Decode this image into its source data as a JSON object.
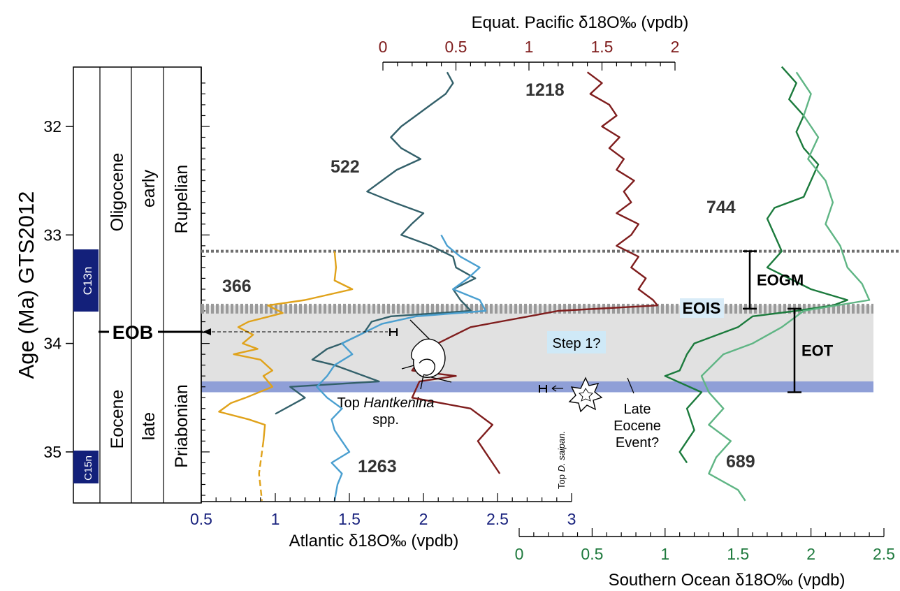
{
  "chart_data": {
    "type": "line",
    "age_axis": {
      "label": "Age (Ma) GTS2012",
      "ticks": [
        "32",
        "33",
        "34",
        "35"
      ],
      "range": [
        31.5,
        35.5
      ]
    },
    "axes": {
      "atlantic": {
        "label": "Atlantic δ18O‰ (vpdb)",
        "range": [
          0.5,
          3
        ],
        "ticks": [
          "0.5",
          "1",
          "1.5",
          "2",
          "2.5",
          "3"
        ],
        "color": "#1a237e"
      },
      "pacific": {
        "label": "Equat. Pacific δ18O‰ (vpdb)",
        "range": [
          0,
          2
        ],
        "ticks": [
          "0",
          "0.5",
          "1",
          "1.5",
          "2"
        ],
        "color": "#7f1d1d"
      },
      "southern": {
        "label": "Southern Ocean δ18O‰ (vpdb)",
        "range": [
          0,
          2.5
        ],
        "ticks": [
          "0",
          "0.5",
          "1",
          "1.5",
          "2",
          "2.5"
        ],
        "color": "#1f7a3e"
      }
    },
    "strat_columns": {
      "chrons": [
        "C13n",
        "C15n"
      ],
      "epochs": [
        "Oligocene",
        "Eocene"
      ],
      "subepochs": [
        "early",
        "late"
      ],
      "stages": [
        "Rupelian",
        "Priabonian"
      ]
    },
    "series": [
      {
        "name": "366",
        "axis": "atlantic",
        "color": "#e0a21a",
        "points": [
          [
            1.4,
            33.15
          ],
          [
            1.41,
            33.3
          ],
          [
            1.4,
            33.42
          ],
          [
            1.52,
            33.5
          ],
          [
            1.2,
            33.6
          ],
          [
            0.95,
            33.65
          ],
          [
            1.05,
            33.72
          ],
          [
            0.82,
            33.8
          ],
          [
            0.75,
            33.85
          ],
          [
            0.85,
            33.92
          ],
          [
            0.78,
            34.0
          ],
          [
            0.88,
            34.05
          ],
          [
            0.72,
            34.1
          ],
          [
            0.9,
            34.15
          ],
          [
            0.98,
            34.25
          ],
          [
            0.92,
            34.3
          ],
          [
            0.98,
            34.4
          ],
          [
            0.8,
            34.5
          ],
          [
            0.7,
            34.55
          ],
          [
            0.62,
            34.63
          ],
          [
            0.82,
            34.7
          ],
          [
            0.93,
            34.75
          ],
          [
            0.92,
            34.9
          ]
        ]
      },
      {
        "name": "366",
        "axis": "atlantic",
        "color": "#e0a21a",
        "dashed": true,
        "points": [
          [
            0.92,
            34.9
          ],
          [
            0.89,
            35.2
          ],
          [
            0.91,
            35.45
          ]
        ]
      },
      {
        "name": "522",
        "axis": "atlantic",
        "color": "#33606a",
        "points": [
          [
            2.16,
            31.5
          ],
          [
            2.2,
            31.6
          ],
          [
            2.15,
            31.7
          ],
          [
            2.05,
            31.8
          ],
          [
            1.95,
            31.9
          ],
          [
            1.85,
            32.0
          ],
          [
            1.78,
            32.1
          ],
          [
            1.85,
            32.2
          ],
          [
            1.98,
            32.3
          ],
          [
            1.82,
            32.4
          ],
          [
            1.72,
            32.5
          ],
          [
            1.62,
            32.6
          ],
          [
            1.8,
            32.7
          ],
          [
            2.0,
            32.8
          ],
          [
            1.92,
            32.9
          ],
          [
            1.85,
            33.0
          ],
          [
            2.05,
            33.1
          ],
          [
            2.2,
            33.2
          ],
          [
            2.22,
            33.3
          ],
          [
            2.35,
            33.4
          ],
          [
            2.2,
            33.5
          ],
          [
            2.25,
            33.6
          ],
          [
            2.32,
            33.7
          ],
          [
            1.78,
            33.75
          ],
          [
            1.65,
            33.8
          ],
          [
            1.6,
            33.9
          ],
          [
            1.45,
            34.0
          ],
          [
            1.35,
            34.05
          ],
          [
            1.25,
            34.15
          ],
          [
            1.4,
            34.2
          ],
          [
            1.7,
            34.35
          ],
          [
            1.1,
            34.4
          ],
          [
            1.2,
            34.5
          ],
          [
            1.0,
            34.65
          ]
        ]
      },
      {
        "name": "1263",
        "axis": "atlantic",
        "color": "#4a9fd0",
        "points": [
          [
            2.12,
            33.0
          ],
          [
            2.16,
            33.1
          ],
          [
            2.25,
            33.2
          ],
          [
            2.38,
            33.3
          ],
          [
            2.3,
            33.4
          ],
          [
            2.2,
            33.5
          ],
          [
            2.38,
            33.6
          ],
          [
            2.42,
            33.7
          ],
          [
            1.95,
            33.75
          ],
          [
            1.72,
            33.82
          ],
          [
            1.6,
            33.9
          ],
          [
            1.45,
            34.0
          ],
          [
            1.52,
            34.1
          ],
          [
            1.4,
            34.2
          ],
          [
            1.35,
            34.3
          ],
          [
            1.28,
            34.4
          ],
          [
            1.35,
            34.5
          ],
          [
            1.45,
            34.6
          ],
          [
            1.38,
            34.7
          ],
          [
            1.4,
            34.8
          ],
          [
            1.45,
            34.9
          ],
          [
            1.5,
            35.0
          ],
          [
            1.38,
            35.1
          ],
          [
            1.45,
            35.2
          ],
          [
            1.42,
            35.3
          ],
          [
            1.4,
            35.45
          ]
        ]
      },
      {
        "name": "1218",
        "axis": "pacific",
        "color": "#7f1d1d",
        "points": [
          [
            1.4,
            31.5
          ],
          [
            1.5,
            31.6
          ],
          [
            1.42,
            31.7
          ],
          [
            1.55,
            31.8
          ],
          [
            1.6,
            31.9
          ],
          [
            1.5,
            32.0
          ],
          [
            1.62,
            32.1
          ],
          [
            1.55,
            32.2
          ],
          [
            1.65,
            32.3
          ],
          [
            1.6,
            32.4
          ],
          [
            1.72,
            32.5
          ],
          [
            1.65,
            32.6
          ],
          [
            1.7,
            32.7
          ],
          [
            1.6,
            32.8
          ],
          [
            1.75,
            32.9
          ],
          [
            1.7,
            33.0
          ],
          [
            1.6,
            33.1
          ],
          [
            1.75,
            33.2
          ],
          [
            1.7,
            33.3
          ],
          [
            1.8,
            33.4
          ],
          [
            1.75,
            33.5
          ],
          [
            1.85,
            33.6
          ],
          [
            1.88,
            33.65
          ],
          [
            1.2,
            33.7
          ],
          [
            1.0,
            33.75
          ],
          [
            0.8,
            33.8
          ],
          [
            0.6,
            33.85
          ],
          [
            0.45,
            33.95
          ],
          [
            0.3,
            34.05
          ],
          [
            0.25,
            34.15
          ],
          [
            0.2,
            34.25
          ],
          [
            0.5,
            34.3
          ],
          [
            0.25,
            34.35
          ],
          [
            0.2,
            34.5
          ],
          [
            0.6,
            34.6
          ],
          [
            0.75,
            34.75
          ],
          [
            0.65,
            34.9
          ],
          [
            0.7,
            35.0
          ],
          [
            0.8,
            35.2
          ]
        ]
      },
      {
        "name": "744",
        "axis": "southern",
        "color": "#1b7a3c",
        "points": [
          [
            1.8,
            31.45
          ],
          [
            1.9,
            31.6
          ],
          [
            1.85,
            31.75
          ],
          [
            1.95,
            31.9
          ],
          [
            1.9,
            32.05
          ],
          [
            1.95,
            32.2
          ],
          [
            2.05,
            32.35
          ],
          [
            2.0,
            32.5
          ],
          [
            1.95,
            32.65
          ],
          [
            1.75,
            32.75
          ],
          [
            1.7,
            32.85
          ],
          [
            1.75,
            33.0
          ],
          [
            1.8,
            33.15
          ],
          [
            1.7,
            33.3
          ],
          [
            1.85,
            33.4
          ],
          [
            2.0,
            33.5
          ],
          [
            2.25,
            33.6
          ],
          [
            2.15,
            33.65
          ],
          [
            1.9,
            33.7
          ],
          [
            1.6,
            33.75
          ],
          [
            1.5,
            33.85
          ],
          [
            1.2,
            34.0
          ],
          [
            1.15,
            34.1
          ],
          [
            1.1,
            34.25
          ],
          [
            1.0,
            34.3
          ],
          [
            1.25,
            34.45
          ],
          [
            1.15,
            34.6
          ],
          [
            1.2,
            34.8
          ],
          [
            1.1,
            35.0
          ],
          [
            1.15,
            35.1
          ]
        ]
      },
      {
        "name": "689",
        "axis": "southern",
        "color": "#5fb584",
        "points": [
          [
            1.9,
            31.5
          ],
          [
            2.0,
            31.7
          ],
          [
            1.95,
            31.9
          ],
          [
            2.05,
            32.1
          ],
          [
            1.98,
            32.3
          ],
          [
            2.1,
            32.5
          ],
          [
            2.15,
            32.7
          ],
          [
            2.1,
            32.9
          ],
          [
            2.2,
            33.1
          ],
          [
            2.25,
            33.3
          ],
          [
            2.35,
            33.45
          ],
          [
            2.4,
            33.6
          ],
          [
            1.95,
            33.7
          ],
          [
            1.8,
            33.85
          ],
          [
            1.6,
            34.0
          ],
          [
            1.4,
            34.1
          ],
          [
            1.25,
            34.3
          ],
          [
            1.3,
            34.45
          ],
          [
            1.4,
            34.6
          ],
          [
            1.3,
            34.75
          ],
          [
            1.45,
            34.9
          ],
          [
            1.35,
            35.05
          ],
          [
            1.3,
            35.2
          ],
          [
            1.5,
            35.35
          ],
          [
            1.55,
            35.45
          ]
        ]
      }
    ],
    "bands": [
      {
        "name": "gray band",
        "from": 33.65,
        "to": 34.35,
        "color": "#e1e1e1"
      },
      {
        "name": "blue band",
        "from": 34.35,
        "to": 34.45,
        "color": "#8f9fd7"
      }
    ],
    "lines": [
      {
        "at": 33.15,
        "style": "dotted"
      },
      {
        "at": 33.68,
        "style": "hatched"
      }
    ],
    "ranges": [
      {
        "label": "EOGM",
        "from": 33.15,
        "to": 33.68
      },
      {
        "label": "EOT",
        "from": 33.68,
        "to": 34.45
      }
    ],
    "labels": {
      "eob": "EOB",
      "eois": "EOIS",
      "step1": "Step 1?",
      "top_hant_1": "Top ",
      "top_hant_italic": "Hantkenina",
      "top_hant_2": "spp.",
      "top_dsai_1": "Top ",
      "top_dsai_italic": "D. saipan.",
      "late_eocene_1": "Late",
      "late_eocene_2": "Eocene",
      "late_eocene_3": "Event?",
      "site_366": "366",
      "site_522": "522",
      "site_1218": "1218",
      "site_1263": "1263",
      "site_744": "744",
      "site_689": "689"
    }
  }
}
